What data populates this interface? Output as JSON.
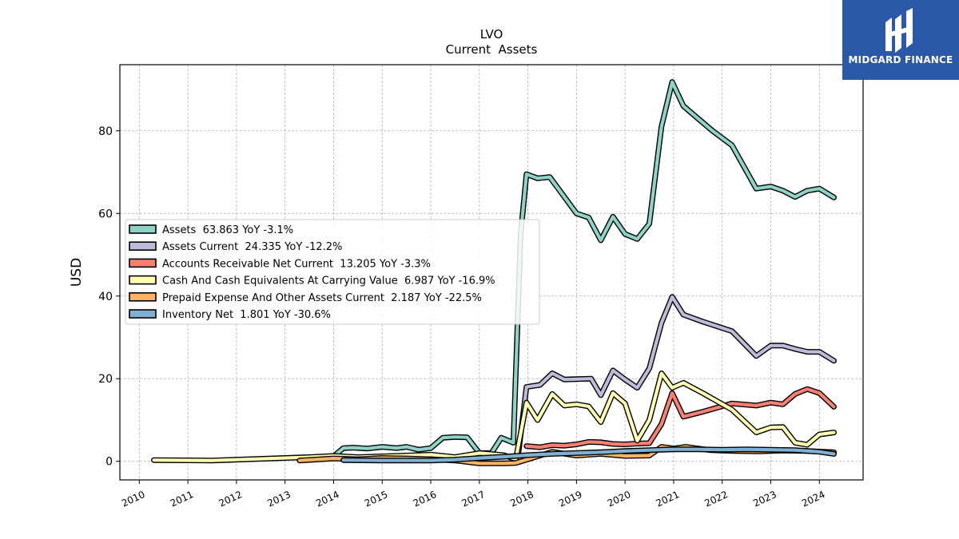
{
  "chart_data": {
    "type": "line",
    "title": "LVO",
    "subtitle": "Current  Assets",
    "xlabel": "",
    "ylabel": "USD",
    "xlim": [
      2009.6,
      2024.9
    ],
    "ylim": [
      -4.5,
      96
    ],
    "yticks": [
      0,
      20,
      40,
      60,
      80
    ],
    "xticks": [
      "2010",
      "2011",
      "2012",
      "2013",
      "2014",
      "2015",
      "2016",
      "2017",
      "2018",
      "2019",
      "2020",
      "2021",
      "2022",
      "2023",
      "2024"
    ],
    "grid": true,
    "legend_position": "center-left",
    "series": [
      {
        "name": "Assets",
        "legend_label": "Assets  63.863 YoY -3.1%",
        "color": "#8dd3c7",
        "points": [
          [
            2014.0,
            1.2
          ],
          [
            2014.2,
            3.2
          ],
          [
            2014.4,
            3.3
          ],
          [
            2014.7,
            3.1
          ],
          [
            2015.0,
            3.5
          ],
          [
            2015.3,
            3.2
          ],
          [
            2015.5,
            3.5
          ],
          [
            2015.75,
            2.8
          ],
          [
            2016.0,
            3.2
          ],
          [
            2016.25,
            5.7
          ],
          [
            2016.5,
            5.9
          ],
          [
            2016.75,
            5.8
          ],
          [
            2017.0,
            2.0
          ],
          [
            2017.25,
            2.0
          ],
          [
            2017.45,
            5.7
          ],
          [
            2017.7,
            4.5
          ],
          [
            2017.85,
            55.0
          ],
          [
            2017.97,
            69.5
          ],
          [
            2018.2,
            68.5
          ],
          [
            2018.45,
            68.8
          ],
          [
            2018.75,
            64.0
          ],
          [
            2019.0,
            60.0
          ],
          [
            2019.25,
            59.0
          ],
          [
            2019.5,
            53.5
          ],
          [
            2019.75,
            59.2
          ],
          [
            2020.0,
            55.0
          ],
          [
            2020.25,
            53.8
          ],
          [
            2020.5,
            57.5
          ],
          [
            2020.75,
            81.0
          ],
          [
            2020.97,
            91.8
          ],
          [
            2021.2,
            86.0
          ],
          [
            2021.5,
            83.0
          ],
          [
            2021.8,
            80.0
          ],
          [
            2022.2,
            76.5
          ],
          [
            2022.7,
            66.0
          ],
          [
            2023.0,
            66.5
          ],
          [
            2023.25,
            65.5
          ],
          [
            2023.5,
            64.0
          ],
          [
            2023.75,
            65.5
          ],
          [
            2024.0,
            66.0
          ],
          [
            2024.3,
            63.863
          ]
        ]
      },
      {
        "name": "Assets Current",
        "legend_label": "Assets Current  24.335 YoY -12.2%",
        "color": "#bebada",
        "points": [
          [
            2017.8,
            1.5
          ],
          [
            2017.97,
            18.0
          ],
          [
            2018.25,
            18.5
          ],
          [
            2018.5,
            21.3
          ],
          [
            2018.75,
            19.8
          ],
          [
            2019.0,
            19.9
          ],
          [
            2019.3,
            20.0
          ],
          [
            2019.5,
            16.0
          ],
          [
            2019.75,
            22.0
          ],
          [
            2020.0,
            19.8
          ],
          [
            2020.25,
            17.8
          ],
          [
            2020.5,
            22.5
          ],
          [
            2020.75,
            33.5
          ],
          [
            2020.97,
            39.8
          ],
          [
            2021.2,
            35.5
          ],
          [
            2021.6,
            33.8
          ],
          [
            2022.2,
            31.5
          ],
          [
            2022.7,
            25.5
          ],
          [
            2023.0,
            28.0
          ],
          [
            2023.25,
            28.0
          ],
          [
            2023.5,
            27.2
          ],
          [
            2023.75,
            26.5
          ],
          [
            2024.0,
            26.5
          ],
          [
            2024.3,
            24.335
          ]
        ]
      },
      {
        "name": "Accounts Receivable Net Current",
        "legend_label": "Accounts Receivable Net Current  13.205 YoY -3.3%",
        "color": "#fb8072",
        "points": [
          [
            2017.97,
            3.7
          ],
          [
            2018.25,
            3.4
          ],
          [
            2018.5,
            3.9
          ],
          [
            2018.75,
            3.8
          ],
          [
            2019.0,
            4.1
          ],
          [
            2019.25,
            4.7
          ],
          [
            2019.5,
            4.6
          ],
          [
            2019.75,
            4.2
          ],
          [
            2020.0,
            4.1
          ],
          [
            2020.25,
            4.3
          ],
          [
            2020.5,
            4.4
          ],
          [
            2020.75,
            9.0
          ],
          [
            2020.97,
            16.5
          ],
          [
            2021.2,
            10.8
          ],
          [
            2021.6,
            12.0
          ],
          [
            2022.2,
            14.0
          ],
          [
            2022.7,
            13.5
          ],
          [
            2023.0,
            14.2
          ],
          [
            2023.25,
            13.8
          ],
          [
            2023.5,
            16.3
          ],
          [
            2023.75,
            17.5
          ],
          [
            2024.0,
            16.5
          ],
          [
            2024.3,
            13.205
          ]
        ]
      },
      {
        "name": "Cash And Cash Equivalents At Carrying Value",
        "legend_label": "Cash And Cash Equivalents At Carrying Value  6.987 YoY -16.9%",
        "color": "#ffffb3",
        "points": [
          [
            2010.3,
            0.3
          ],
          [
            2011.5,
            0.2
          ],
          [
            2013.5,
            1.0
          ],
          [
            2014.0,
            1.3
          ],
          [
            2014.5,
            1.0
          ],
          [
            2015.0,
            1.2
          ],
          [
            2015.5,
            1.4
          ],
          [
            2016.0,
            1.6
          ],
          [
            2016.5,
            1.0
          ],
          [
            2017.0,
            2.0
          ],
          [
            2017.5,
            1.5
          ],
          [
            2017.75,
            0.5
          ],
          [
            2017.97,
            14.2
          ],
          [
            2018.2,
            10.0
          ],
          [
            2018.5,
            16.3
          ],
          [
            2018.75,
            13.5
          ],
          [
            2019.0,
            13.8
          ],
          [
            2019.25,
            13.3
          ],
          [
            2019.5,
            9.5
          ],
          [
            2019.75,
            16.5
          ],
          [
            2020.0,
            14.0
          ],
          [
            2020.25,
            5.0
          ],
          [
            2020.5,
            10.0
          ],
          [
            2020.75,
            21.3
          ],
          [
            2020.97,
            17.8
          ],
          [
            2021.2,
            19.0
          ],
          [
            2021.6,
            16.5
          ],
          [
            2022.2,
            12.5
          ],
          [
            2022.7,
            7.0
          ],
          [
            2023.0,
            8.2
          ],
          [
            2023.25,
            8.3
          ],
          [
            2023.5,
            4.5
          ],
          [
            2023.75,
            4.0
          ],
          [
            2024.0,
            6.5
          ],
          [
            2024.3,
            6.987
          ]
        ]
      },
      {
        "name": "Prepaid Expense And Other Assets Current",
        "legend_label": "Prepaid Expense And Other Assets Current  2.187 YoY -22.5%",
        "color": "#fdb462",
        "points": [
          [
            2013.3,
            0.2
          ],
          [
            2014.0,
            0.7
          ],
          [
            2014.5,
            0.5
          ],
          [
            2015.0,
            0.8
          ],
          [
            2015.5,
            0.7
          ],
          [
            2016.0,
            0.5
          ],
          [
            2016.5,
            0.2
          ],
          [
            2017.0,
            -0.5
          ],
          [
            2017.5,
            -0.5
          ],
          [
            2017.75,
            -0.4
          ],
          [
            2018.0,
            0.5
          ],
          [
            2018.5,
            2.3
          ],
          [
            2019.0,
            1.4
          ],
          [
            2019.5,
            1.8
          ],
          [
            2020.0,
            1.3
          ],
          [
            2020.5,
            1.4
          ],
          [
            2020.75,
            3.5
          ],
          [
            2021.0,
            3.1
          ],
          [
            2021.25,
            3.5
          ],
          [
            2021.75,
            2.7
          ],
          [
            2022.25,
            2.5
          ],
          [
            2022.75,
            2.4
          ],
          [
            2023.25,
            2.6
          ],
          [
            2023.75,
            2.5
          ],
          [
            2024.3,
            2.187
          ]
        ]
      },
      {
        "name": "Inventory Net",
        "legend_label": "Inventory Net  1.801 YoY -30.6%",
        "color": "#80b1d3",
        "points": [
          [
            2014.2,
            0.3
          ],
          [
            2015.0,
            0.2
          ],
          [
            2015.5,
            0.2
          ],
          [
            2016.0,
            0.2
          ],
          [
            2016.5,
            0.4
          ],
          [
            2017.0,
            0.8
          ],
          [
            2017.5,
            1.1
          ],
          [
            2018.0,
            1.5
          ],
          [
            2018.5,
            1.8
          ],
          [
            2019.0,
            2.0
          ],
          [
            2019.5,
            2.2
          ],
          [
            2020.0,
            2.5
          ],
          [
            2020.5,
            2.7
          ],
          [
            2021.0,
            2.9
          ],
          [
            2021.5,
            2.9
          ],
          [
            2022.0,
            2.8
          ],
          [
            2022.5,
            2.9
          ],
          [
            2023.0,
            2.8
          ],
          [
            2023.5,
            2.7
          ],
          [
            2024.0,
            2.3
          ],
          [
            2024.3,
            1.801
          ]
        ]
      }
    ]
  },
  "logo": {
    "text": "MIDGARD FINANCE"
  }
}
